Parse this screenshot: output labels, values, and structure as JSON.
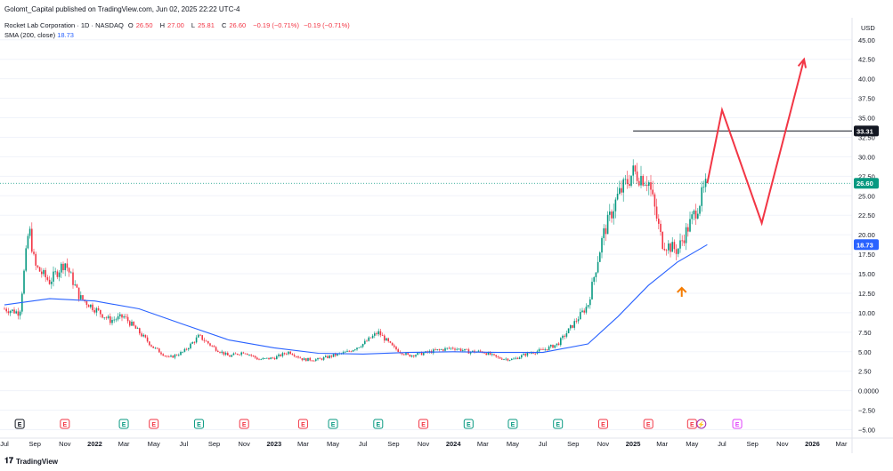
{
  "header": {
    "publisher_text": "Golomt_Capital published on TradingView.com, Jun 02, 2025 22:22 UTC-4",
    "symbol": "Rocket Lab Corporation · 1D · NASDAQ",
    "ohlc": {
      "open_label": "O",
      "open": "26.50",
      "high_label": "H",
      "high": "27.00",
      "low_label": "L",
      "low": "25.81",
      "close_label": "C",
      "close": "26.60",
      "change": "−0.19 (−0.71%)",
      "change2": "−0.19 (−0.71%)"
    },
    "sma_label": "SMA (200, close)",
    "sma_value": "18.73"
  },
  "footer": {
    "brand": "TradingView",
    "brand_mark": "𝟏𝟕"
  },
  "colors": {
    "up": "#089981",
    "down": "#f23645",
    "sma": "#2962ff",
    "projection": "#f23645",
    "arrow": "#f57c00",
    "grid": "#f0f3fa",
    "price_line": "#089981"
  },
  "chart_data": {
    "type": "candlestick",
    "currency": "USD",
    "ylim": [
      -5,
      45
    ],
    "yticks": [
      "45.00",
      "42.50",
      "40.00",
      "37.50",
      "35.00",
      "32.50",
      "30.00",
      "27.50",
      "25.00",
      "22.50",
      "20.00",
      "17.50",
      "15.00",
      "12.50",
      "10.00",
      "7.50",
      "5.00",
      "2.50",
      "0.0000",
      "−2.50",
      "−5.00"
    ],
    "ytick_values": [
      45,
      42.5,
      40,
      37.5,
      35,
      32.5,
      30,
      27.5,
      25,
      22.5,
      20,
      17.5,
      15,
      12.5,
      10,
      7.5,
      5,
      2.5,
      0,
      -2.5,
      -5
    ],
    "xticks": [
      "Jul",
      "Sep",
      "Nov",
      "2022",
      "Mar",
      "May",
      "Jul",
      "Sep",
      "Nov",
      "2023",
      "Mar",
      "May",
      "Jul",
      "Sep",
      "Nov",
      "2024",
      "Mar",
      "May",
      "Jul",
      "Sep",
      "Nov",
      "2025",
      "Mar",
      "May",
      "Jul",
      "Sep",
      "Nov",
      "2026",
      "Mar"
    ],
    "xtick_bold": [
      "2022",
      "2023",
      "2024",
      "2025",
      "2026"
    ],
    "price_path": [
      {
        "x": "2021-07",
        "y": 10.5
      },
      {
        "x": "2021-08",
        "y": 10.0
      },
      {
        "x": "2021-08-20",
        "y": 21.0
      },
      {
        "x": "2021-09",
        "y": 16.0
      },
      {
        "x": "2021-10",
        "y": 14.0
      },
      {
        "x": "2021-11",
        "y": 16.5
      },
      {
        "x": "2021-12",
        "y": 12.0
      },
      {
        "x": "2022-01",
        "y": 10.5
      },
      {
        "x": "2022-02",
        "y": 9.0
      },
      {
        "x": "2022-03",
        "y": 9.5
      },
      {
        "x": "2022-04",
        "y": 7.5
      },
      {
        "x": "2022-05",
        "y": 5.5
      },
      {
        "x": "2022-06",
        "y": 4.2
      },
      {
        "x": "2022-07",
        "y": 5.0
      },
      {
        "x": "2022-08",
        "y": 7.0
      },
      {
        "x": "2022-09",
        "y": 5.5
      },
      {
        "x": "2022-10",
        "y": 4.4
      },
      {
        "x": "2022-11",
        "y": 5.0
      },
      {
        "x": "2022-12",
        "y": 4.0
      },
      {
        "x": "2023-01",
        "y": 4.2
      },
      {
        "x": "2023-02",
        "y": 5.0
      },
      {
        "x": "2023-03",
        "y": 4.0
      },
      {
        "x": "2023-04",
        "y": 4.0
      },
      {
        "x": "2023-05",
        "y": 4.5
      },
      {
        "x": "2023-06",
        "y": 5.0
      },
      {
        "x": "2023-07",
        "y": 6.0
      },
      {
        "x": "2023-08",
        "y": 7.5
      },
      {
        "x": "2023-09",
        "y": 5.5
      },
      {
        "x": "2023-10",
        "y": 4.5
      },
      {
        "x": "2023-11",
        "y": 4.8
      },
      {
        "x": "2023-12",
        "y": 5.2
      },
      {
        "x": "2024-01",
        "y": 5.5
      },
      {
        "x": "2024-02",
        "y": 5.0
      },
      {
        "x": "2024-03",
        "y": 5.0
      },
      {
        "x": "2024-04",
        "y": 4.2
      },
      {
        "x": "2024-05",
        "y": 4.0
      },
      {
        "x": "2024-06",
        "y": 4.8
      },
      {
        "x": "2024-07",
        "y": 5.2
      },
      {
        "x": "2024-08",
        "y": 6.0
      },
      {
        "x": "2024-09",
        "y": 8.5
      },
      {
        "x": "2024-10",
        "y": 11.0
      },
      {
        "x": "2024-11",
        "y": 20.0
      },
      {
        "x": "2024-12",
        "y": 25.0
      },
      {
        "x": "2025-01",
        "y": 28.0
      },
      {
        "x": "2025-02",
        "y": 27.0
      },
      {
        "x": "2025-03",
        "y": 19.0
      },
      {
        "x": "2025-04",
        "y": 18.0
      },
      {
        "x": "2025-05",
        "y": 22.0
      },
      {
        "x": "2025-06",
        "y": 26.6
      }
    ],
    "sma_series": {
      "name": "SMA (200, close)",
      "points": [
        {
          "x": "2021-07",
          "y": 11.0
        },
        {
          "x": "2021-10",
          "y": 11.8
        },
        {
          "x": "2022-01",
          "y": 11.5
        },
        {
          "x": "2022-04",
          "y": 10.5
        },
        {
          "x": "2022-07",
          "y": 8.5
        },
        {
          "x": "2022-10",
          "y": 6.5
        },
        {
          "x": "2023-01",
          "y": 5.5
        },
        {
          "x": "2023-04",
          "y": 4.8
        },
        {
          "x": "2023-07",
          "y": 4.7
        },
        {
          "x": "2023-10",
          "y": 4.9
        },
        {
          "x": "2024-01",
          "y": 5.0
        },
        {
          "x": "2024-04",
          "y": 4.9
        },
        {
          "x": "2024-07",
          "y": 4.9
        },
        {
          "x": "2024-10",
          "y": 6.0
        },
        {
          "x": "2024-12",
          "y": 9.5
        },
        {
          "x": "2025-02",
          "y": 13.5
        },
        {
          "x": "2025-04",
          "y": 16.5
        },
        {
          "x": "2025-06",
          "y": 18.73
        }
      ]
    },
    "resistance": {
      "value": 33.31,
      "label": "33.31",
      "from": "2025-01",
      "to": "2026-03"
    },
    "last_price": {
      "value": 26.6,
      "label": "26.60"
    },
    "sma_last": {
      "value": 18.73,
      "label": "18.73"
    },
    "projection": [
      {
        "x": "2025-06",
        "y": 26.6
      },
      {
        "x": "2025-07",
        "y": 36.0
      },
      {
        "x": "2025-09-20",
        "y": 21.5
      },
      {
        "x": "2025-12-15",
        "y": 42.5
      }
    ],
    "arrow": {
      "x": "2025-04-10",
      "y": 12.5
    },
    "events": [
      {
        "x": "2021-08",
        "type": "E",
        "style": "gray"
      },
      {
        "x": "2021-11",
        "type": "E",
        "style": "red"
      },
      {
        "x": "2022-03",
        "type": "E",
        "style": "green"
      },
      {
        "x": "2022-05",
        "type": "E",
        "style": "red"
      },
      {
        "x": "2022-08",
        "type": "E",
        "style": "green"
      },
      {
        "x": "2022-11",
        "type": "E",
        "style": "red"
      },
      {
        "x": "2023-03",
        "type": "E",
        "style": "red"
      },
      {
        "x": "2023-05",
        "type": "E",
        "style": "green"
      },
      {
        "x": "2023-08",
        "type": "E",
        "style": "green"
      },
      {
        "x": "2023-11",
        "type": "E",
        "style": "red"
      },
      {
        "x": "2024-02",
        "type": "E",
        "style": "green"
      },
      {
        "x": "2024-05",
        "type": "E",
        "style": "green"
      },
      {
        "x": "2024-08",
        "type": "E",
        "style": "green"
      },
      {
        "x": "2024-11",
        "type": "E",
        "style": "red"
      },
      {
        "x": "2025-02",
        "type": "E",
        "style": "red"
      },
      {
        "x": "2025-05",
        "type": "E",
        "style": "red"
      },
      {
        "x": "2025-05-20",
        "type": "⚡",
        "style": "purple"
      },
      {
        "x": "2025-08",
        "type": "E",
        "style": "purple-outline"
      }
    ]
  }
}
